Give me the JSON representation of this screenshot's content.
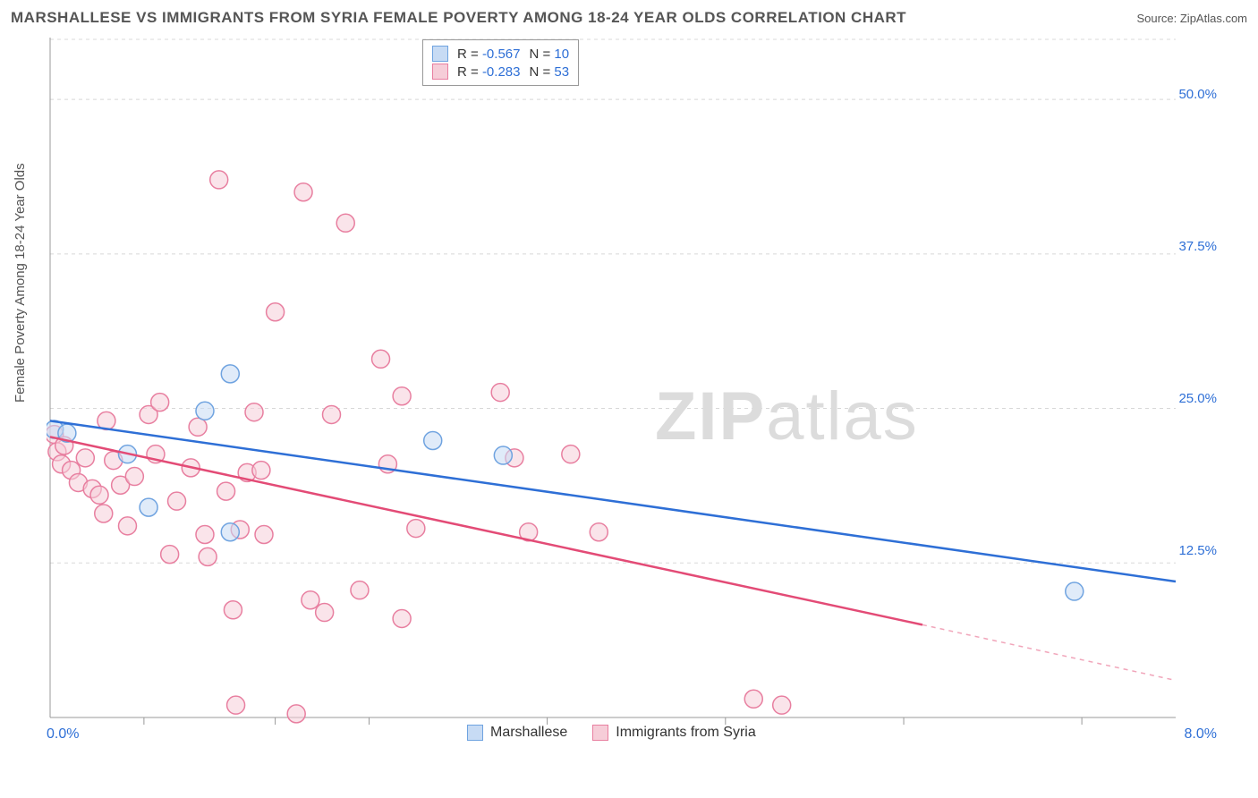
{
  "header": {
    "title": "MARSHALLESE VS IMMIGRANTS FROM SYRIA FEMALE POVERTY AMONG 18-24 YEAR OLDS CORRELATION CHART",
    "source": "Source: ZipAtlas.com"
  },
  "axes": {
    "y_label": "Female Poverty Among 18-24 Year Olds",
    "x_min": 0.0,
    "x_max": 8.0,
    "y_min": 0.0,
    "y_max": 55.0,
    "x_left_label": "0.0%",
    "x_right_label": "8.0%",
    "y_ticks": [
      12.5,
      25.0,
      37.5,
      50.0
    ],
    "y_tick_labels": [
      "12.5%",
      "25.0%",
      "37.5%",
      "50.0%"
    ],
    "x_ticks": [
      0.667,
      1.6,
      2.267,
      3.533,
      4.8,
      6.067,
      7.333
    ]
  },
  "series": [
    {
      "name": "Marshallese",
      "color_fill": "#c7dbf4",
      "color_stroke": "#6fa3e0",
      "line_color": "#2e6fd6",
      "R": "-0.567",
      "N": "10",
      "trend": {
        "x1": 0.0,
        "y1": 24.0,
        "x2": 8.0,
        "y2": 11.0
      },
      "points": [
        [
          0.03,
          23.3
        ],
        [
          0.55,
          21.3
        ],
        [
          0.12,
          23.0
        ],
        [
          1.28,
          15.0
        ],
        [
          1.28,
          27.8
        ],
        [
          1.1,
          24.8
        ],
        [
          2.72,
          22.4
        ],
        [
          3.22,
          21.2
        ],
        [
          0.7,
          17.0
        ],
        [
          7.28,
          10.2
        ]
      ]
    },
    {
      "name": "Immigrants from Syria",
      "color_fill": "#f6cdd8",
      "color_stroke": "#e87fa0",
      "line_color": "#e34b76",
      "R": "-0.283",
      "N": "53",
      "trend": {
        "x1": 0.0,
        "y1": 22.7,
        "x2": 6.2,
        "y2": 7.5,
        "x2_ext": 8.0,
        "y2_ext": 3.0
      },
      "points": [
        [
          0.03,
          22.9
        ],
        [
          0.05,
          21.5
        ],
        [
          0.08,
          20.5
        ],
        [
          0.1,
          22.0
        ],
        [
          0.15,
          20.0
        ],
        [
          0.2,
          19.0
        ],
        [
          0.25,
          21.0
        ],
        [
          0.3,
          18.5
        ],
        [
          0.35,
          18.0
        ],
        [
          0.38,
          16.5
        ],
        [
          0.4,
          24.0
        ],
        [
          0.45,
          20.8
        ],
        [
          0.5,
          18.8
        ],
        [
          0.55,
          15.5
        ],
        [
          0.6,
          19.5
        ],
        [
          0.7,
          24.5
        ],
        [
          0.75,
          21.3
        ],
        [
          0.78,
          25.5
        ],
        [
          0.85,
          13.2
        ],
        [
          0.9,
          17.5
        ],
        [
          1.0,
          20.2
        ],
        [
          1.05,
          23.5
        ],
        [
          1.1,
          14.8
        ],
        [
          1.12,
          13.0
        ],
        [
          1.2,
          43.5
        ],
        [
          1.25,
          18.3
        ],
        [
          1.3,
          8.7
        ],
        [
          1.32,
          1.0
        ],
        [
          1.35,
          15.2
        ],
        [
          1.4,
          19.8
        ],
        [
          1.45,
          24.7
        ],
        [
          1.5,
          20.0
        ],
        [
          1.52,
          14.8
        ],
        [
          1.6,
          32.8
        ],
        [
          1.75,
          0.3
        ],
        [
          1.8,
          42.5
        ],
        [
          1.85,
          9.5
        ],
        [
          1.95,
          8.5
        ],
        [
          2.0,
          24.5
        ],
        [
          2.1,
          40.0
        ],
        [
          2.2,
          10.3
        ],
        [
          2.35,
          29.0
        ],
        [
          2.4,
          20.5
        ],
        [
          2.5,
          26.0
        ],
        [
          2.5,
          8.0
        ],
        [
          2.6,
          15.3
        ],
        [
          3.2,
          26.3
        ],
        [
          3.3,
          21.0
        ],
        [
          3.7,
          21.3
        ],
        [
          3.9,
          15.0
        ],
        [
          5.0,
          1.5
        ],
        [
          5.2,
          1.0
        ],
        [
          3.4,
          15.0
        ]
      ]
    }
  ],
  "watermark": "ZIPatlas",
  "bottom_legend": {
    "item1": "Marshallese",
    "item2": "Immigrants from Syria"
  },
  "style": {
    "grid_color": "#d8d8d8",
    "axis_color": "#999",
    "marker_radius": 10,
    "marker_opacity": 0.55,
    "background": "#ffffff"
  }
}
